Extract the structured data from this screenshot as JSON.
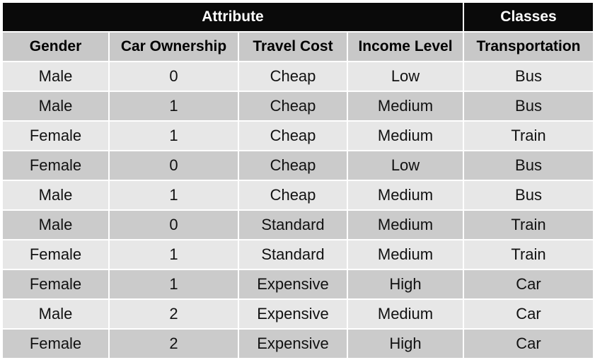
{
  "groups": {
    "attribute": "Attribute",
    "classes": "Classes"
  },
  "columns": [
    "Gender",
    "Car Ownership",
    "Travel Cost",
    "Income Level",
    "Transportation"
  ],
  "rows": [
    [
      "Male",
      "0",
      "Cheap",
      "Low",
      "Bus"
    ],
    [
      "Male",
      "1",
      "Cheap",
      "Medium",
      "Bus"
    ],
    [
      "Female",
      "1",
      "Cheap",
      "Medium",
      "Train"
    ],
    [
      "Female",
      "0",
      "Cheap",
      "Low",
      "Bus"
    ],
    [
      "Male",
      "1",
      "Cheap",
      "Medium",
      "Bus"
    ],
    [
      "Male",
      "0",
      "Standard",
      "Medium",
      "Train"
    ],
    [
      "Female",
      "1",
      "Standard",
      "Medium",
      "Train"
    ],
    [
      "Female",
      "1",
      "Expensive",
      "High",
      "Car"
    ],
    [
      "Male",
      "2",
      "Expensive",
      "Medium",
      "Car"
    ],
    [
      "Female",
      "2",
      "Expensive",
      "High",
      "Car"
    ]
  ],
  "colors": {
    "group_header_bg": "#0a0a0a",
    "column_header_bg": "#c8c8c8",
    "row_light": "#e7e7e7",
    "row_dark": "#cbcbcb"
  }
}
